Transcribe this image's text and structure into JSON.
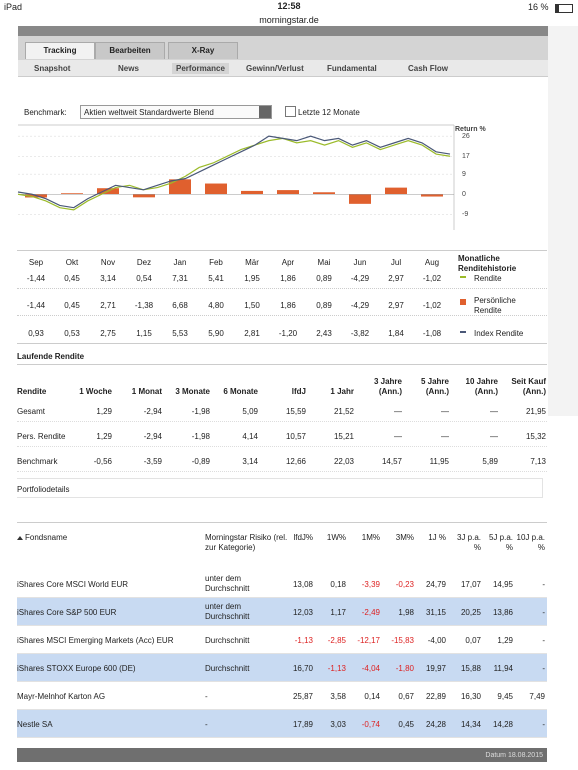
{
  "status": {
    "device": "iPad",
    "time": "12:58",
    "url": "morningstar.de",
    "battery": "16 %"
  },
  "tabs": [
    "Tracking",
    "Bearbeiten",
    "X-Ray"
  ],
  "subtabs": [
    "Snapshot",
    "News",
    "Performance",
    "Gewinn/Verlust",
    "Fundamental",
    "Cash Flow"
  ],
  "benchmark": {
    "label": "Benchmark:",
    "selected": "Aktien weltweit Standardwerte Blend",
    "checkbox": "Letzte 12 Monate"
  },
  "chart": {
    "type": "bar",
    "y_axis_label": "Return %",
    "ylim": [
      -16,
      31
    ],
    "yticks": [
      26,
      17,
      9,
      0,
      -9
    ],
    "grid": true,
    "bars": {
      "color": "#e0602e",
      "values": [
        -1.44,
        0.45,
        2.71,
        -1.38,
        6.68,
        4.8,
        1.5,
        1.86,
        0.89,
        -4.29,
        2.97,
        -1.02
      ]
    },
    "lines": [
      {
        "color": "#9bbb2a",
        "values": [
          0,
          -1,
          -3,
          -6,
          -7,
          -3,
          0,
          3,
          4,
          2,
          3,
          5,
          8,
          12,
          14,
          17,
          20,
          22,
          24,
          25,
          23,
          24,
          22,
          24,
          21,
          23,
          20,
          22,
          24,
          22,
          18,
          17
        ]
      },
      {
        "color": "#4a5878",
        "values": [
          1,
          0,
          -2,
          -5,
          -6,
          -2,
          1,
          4,
          3,
          2,
          4,
          6,
          7,
          10,
          13,
          16,
          19,
          22,
          26,
          25,
          24,
          26,
          24,
          25,
          22,
          24,
          21,
          23,
          25,
          23,
          19,
          18
        ]
      }
    ]
  },
  "monthly": {
    "months": [
      "Sep",
      "Okt",
      "Nov",
      "Dez",
      "Jan",
      "Feb",
      "Mär",
      "Apr",
      "Mai",
      "Jun",
      "Jul",
      "Aug"
    ],
    "legend_title": "Monatliche Renditehistorie",
    "rows": [
      {
        "label": "Rendite",
        "color": "#9bbb2a",
        "values": [
          "-1,44",
          "0,45",
          "3,14",
          "0,54",
          "7,31",
          "5,41",
          "1,95",
          "1,86",
          "0,89",
          "-4,29",
          "2,97",
          "-1,02"
        ]
      },
      {
        "label": "Persönliche Rendite",
        "color": "#e0602e",
        "values": [
          "-1,44",
          "0,45",
          "2,71",
          "-1,38",
          "6,68",
          "4,80",
          "1,50",
          "1,86",
          "0,89",
          "-4,29",
          "2,97",
          "-1,02"
        ]
      },
      {
        "label": "Index Rendite",
        "color": "#4a5878",
        "values": [
          "0,93",
          "0,53",
          "2,75",
          "1,15",
          "5,53",
          "5,90",
          "2,81",
          "-1,20",
          "2,43",
          "-3,82",
          "1,84",
          "-1,08"
        ]
      }
    ]
  },
  "running": {
    "title": "Laufende Rendite",
    "headers": [
      "Rendite",
      "1 Woche",
      "1 Monat",
      "3 Monate",
      "6 Monate",
      "lfdJ",
      "1 Jahr",
      "3 Jahre (Ann.)",
      "5 Jahre (Ann.)",
      "10 Jahre (Ann.)",
      "Seit Kauf (Ann.)"
    ],
    "rows": [
      [
        "Gesamt",
        "1,29",
        "-2,94",
        "-1,98",
        "5,09",
        "15,59",
        "21,52",
        "—",
        "—",
        "—",
        "21,95"
      ],
      [
        "Pers. Rendite",
        "1,29",
        "-2,94",
        "-1,98",
        "4,14",
        "10,57",
        "15,21",
        "—",
        "—",
        "—",
        "15,32"
      ],
      [
        "Benchmark",
        "-0,56",
        "-3,59",
        "-0,89",
        "3,14",
        "12,66",
        "22,03",
        "14,57",
        "11,95",
        "5,89",
        "7,13"
      ]
    ]
  },
  "portfolio": {
    "title": "Portfoliodetails",
    "headers": [
      "Fondsname",
      "Morningstar Risiko (rel. zur Kategorie)",
      "lfdJ%",
      "1W%",
      "1M%",
      "3M%",
      "1J %",
      "3J p.a. %",
      "5J p.a. %",
      "10J p.a. %"
    ],
    "rows": [
      [
        "iShares Core MSCI World EUR",
        "unter dem Durchschnitt",
        "13,08",
        "0,18",
        "-3,39",
        "-0,23",
        "24,79",
        "17,07",
        "14,95",
        "-"
      ],
      [
        "iShares Core S&P 500 EUR",
        "unter dem Durchschnitt",
        "12,03",
        "1,17",
        "-2,49",
        "1,98",
        "31,15",
        "20,25",
        "13,86",
        "-"
      ],
      [
        "iShares MSCI Emerging Markets (Acc) EUR",
        "Durchschnitt",
        "-1,13",
        "-2,85",
        "-12,17",
        "-15,83",
        "-4,00",
        "0,07",
        "1,29",
        "-"
      ],
      [
        "iShares STOXX Europe 600 (DE)",
        "Durchschnitt",
        "16,70",
        "-1,13",
        "-4,04",
        "-1,80",
        "19,97",
        "15,88",
        "11,94",
        "-"
      ],
      [
        "Mayr-Melnhof Karton AG",
        "-",
        "25,87",
        "3,58",
        "0,14",
        "0,67",
        "22,89",
        "16,30",
        "9,45",
        "7,49"
      ],
      [
        "Nestle SA",
        "-",
        "17,89",
        "3,03",
        "-0,74",
        "0,45",
        "24,28",
        "14,34",
        "14,28",
        "-"
      ]
    ]
  },
  "footer": "Datum 18.08.2015"
}
